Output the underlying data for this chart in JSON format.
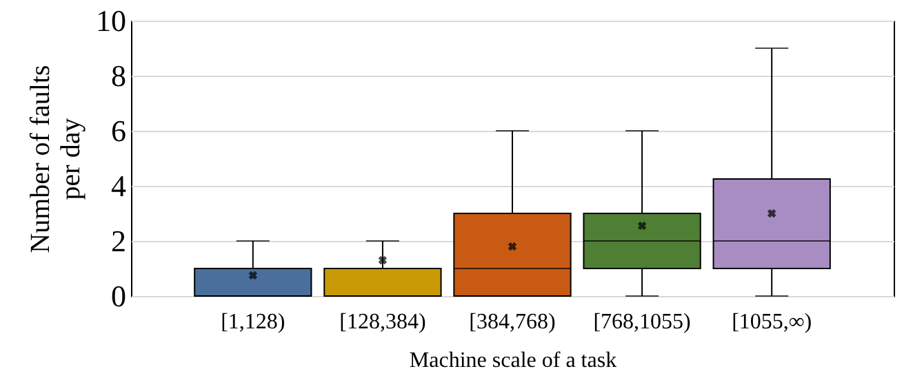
{
  "chart_data": {
    "type": "box",
    "xlabel": "Machine scale of a task",
    "ylabel": "Number of faults per day",
    "categories": [
      "[1,128)",
      "[128,384)",
      "[384,768)",
      "[768,1055)",
      "[1055,∞)"
    ],
    "colors": [
      "#4a6f9c",
      "#c99a06",
      "#c95a14",
      "#4f7f35",
      "#a88dc3"
    ],
    "boxes": [
      {
        "low": 0,
        "q1": 0,
        "median": 0,
        "q3": 1,
        "high": 2,
        "mean": 0.75
      },
      {
        "low": 0,
        "q1": 0,
        "median": 0,
        "q3": 1,
        "high": 2,
        "mean": 1.3
      },
      {
        "low": 0,
        "q1": 0,
        "median": 1,
        "q3": 3,
        "high": 6,
        "mean": 1.8
      },
      {
        "low": 0,
        "q1": 1,
        "median": 2,
        "q3": 3,
        "high": 6,
        "mean": 2.55
      },
      {
        "low": 0,
        "q1": 1,
        "median": 2,
        "q3": 4.25,
        "high": 9,
        "mean": 3
      }
    ],
    "ylim": [
      0,
      10
    ],
    "yticks": [
      0,
      2,
      4,
      6,
      8,
      10
    ],
    "grid": "y",
    "marker": "cross"
  }
}
